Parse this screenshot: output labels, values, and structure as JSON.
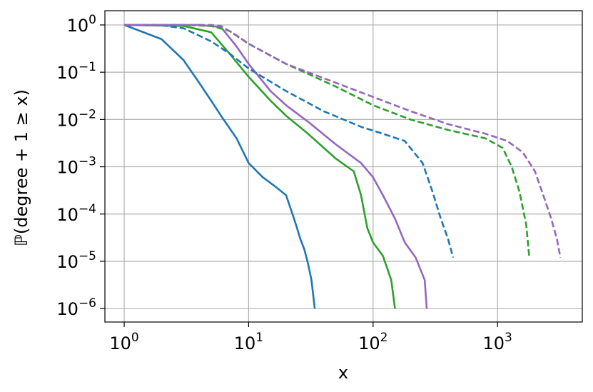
{
  "chart_data": {
    "type": "line",
    "xlabel": "x",
    "ylabel": "ℙ(degree + 1 ≥ x)",
    "x_scale": "log",
    "y_scale": "log",
    "xlim": [
      0.7,
      4800
    ],
    "ylim": [
      5.2e-07,
      2.0
    ],
    "grid": true,
    "x_ticks": [
      {
        "value": 1,
        "base": "10",
        "exp": "0"
      },
      {
        "value": 10,
        "base": "10",
        "exp": "1"
      },
      {
        "value": 100,
        "base": "10",
        "exp": "2"
      },
      {
        "value": 1000,
        "base": "10",
        "exp": "3"
      }
    ],
    "y_ticks": [
      {
        "value": 1,
        "base": "10",
        "exp": "0"
      },
      {
        "value": 0.1,
        "base": "10",
        "exp": "−1"
      },
      {
        "value": 0.01,
        "base": "10",
        "exp": "−2"
      },
      {
        "value": 0.001,
        "base": "10",
        "exp": "−3"
      },
      {
        "value": 0.0001,
        "base": "10",
        "exp": "−4"
      },
      {
        "value": 1e-05,
        "base": "10",
        "exp": "−5"
      },
      {
        "value": 1e-06,
        "base": "10",
        "exp": "−6"
      }
    ],
    "series": [
      {
        "color": "#1f77b4",
        "dash": "solid",
        "x": [
          1,
          2,
          3,
          4,
          5,
          6,
          8,
          10,
          13,
          16,
          20,
          22,
          24,
          26,
          28,
          30,
          32,
          34
        ],
        "y": [
          1,
          0.5,
          0.18,
          0.06,
          0.025,
          0.012,
          0.004,
          0.0012,
          0.0006,
          0.0004,
          0.00025,
          0.00012,
          6e-05,
          3e-05,
          1.8e-05,
          9e-06,
          4e-06,
          1e-06
        ]
      },
      {
        "color": "#2ca02c",
        "dash": "solid",
        "x": [
          1,
          3,
          5,
          7,
          10,
          15,
          20,
          30,
          50,
          70,
          80,
          90,
          100,
          120,
          140,
          150
        ],
        "y": [
          1,
          0.95,
          0.7,
          0.25,
          0.08,
          0.025,
          0.012,
          0.005,
          0.0015,
          0.0008,
          0.00025,
          5e-05,
          2.5e-05,
          1.3e-05,
          4e-06,
          1e-06
        ]
      },
      {
        "color": "#9467bd",
        "dash": "solid",
        "x": [
          1,
          4,
          6,
          8,
          10,
          15,
          20,
          30,
          50,
          80,
          100,
          120,
          150,
          180,
          220,
          260,
          270
        ],
        "y": [
          1,
          1,
          0.9,
          0.35,
          0.15,
          0.04,
          0.02,
          0.009,
          0.003,
          0.0012,
          0.0006,
          0.00025,
          8e-05,
          2.5e-05,
          1.2e-05,
          4e-06,
          1e-06
        ]
      },
      {
        "color": "#1f77b4",
        "dash": "dashed",
        "x": [
          1,
          2,
          3,
          5,
          7,
          10,
          20,
          40,
          80,
          120,
          180,
          250,
          300,
          350,
          400,
          440
        ],
        "y": [
          1,
          0.98,
          0.85,
          0.45,
          0.25,
          0.12,
          0.04,
          0.015,
          0.007,
          0.005,
          0.0035,
          0.0012,
          0.0003,
          8e-05,
          3e-05,
          1.2e-05
        ]
      },
      {
        "color": "#2ca02c",
        "dash": "dashed",
        "x": [
          1,
          3,
          5,
          7,
          10,
          20,
          50,
          100,
          200,
          400,
          800,
          1100,
          1300,
          1500,
          1700,
          1800
        ],
        "y": [
          1,
          1,
          0.95,
          0.75,
          0.4,
          0.15,
          0.05,
          0.02,
          0.01,
          0.006,
          0.004,
          0.0025,
          0.001,
          0.0003,
          6e-05,
          1.2e-05
        ]
      },
      {
        "color": "#9467bd",
        "dash": "dashed",
        "x": [
          1,
          5,
          6,
          8,
          10,
          20,
          50,
          100,
          200,
          400,
          800,
          1200,
          1600,
          2000,
          2400,
          2700,
          3000,
          3200
        ],
        "y": [
          1,
          1,
          0.95,
          0.6,
          0.4,
          0.15,
          0.06,
          0.03,
          0.015,
          0.008,
          0.005,
          0.0035,
          0.002,
          0.0008,
          0.0002,
          8e-05,
          3e-05,
          1.2e-05
        ]
      }
    ]
  }
}
